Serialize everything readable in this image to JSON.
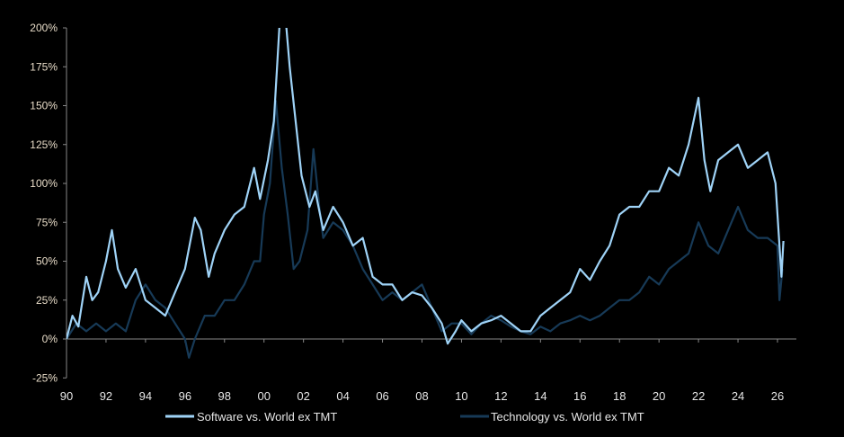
{
  "chart_data": {
    "type": "line",
    "title": "",
    "xlabel": "",
    "ylabel": "",
    "xlim": [
      1990,
      2026.8
    ],
    "ylim": [
      -25,
      200
    ],
    "y_ticks": [
      -25,
      0,
      25,
      50,
      75,
      100,
      125,
      150,
      175,
      200
    ],
    "y_tick_labels": [
      "-25%",
      "0%",
      "25%",
      "50%",
      "75%",
      "100%",
      "125%",
      "150%",
      "175%",
      "200%"
    ],
    "x_ticks": [
      1990,
      1992,
      1994,
      1996,
      1998,
      2000,
      2002,
      2004,
      2006,
      2008,
      2010,
      2012,
      2014,
      2016,
      2018,
      2020,
      2022,
      2024,
      2026
    ],
    "x_tick_labels": [
      "90",
      "92",
      "94",
      "96",
      "98",
      "00",
      "02",
      "04",
      "06",
      "08",
      "10",
      "12",
      "14",
      "16",
      "18",
      "20",
      "22",
      "24",
      "26"
    ],
    "grid": false,
    "legend_position": "bottom",
    "series": [
      {
        "name": "Software vs. World ex TMT",
        "color": "#9fd3f7",
        "x": [
          1990,
          1990.3,
          1990.6,
          1991,
          1991.3,
          1991.6,
          1992,
          1992.3,
          1992.6,
          1993,
          1993.5,
          1994,
          1994.5,
          1995,
          1995.5,
          1996,
          1996.5,
          1996.8,
          1997.2,
          1997.5,
          1998,
          1998.5,
          1999,
          1999.5,
          1999.8,
          2000.2,
          2000.5,
          2000.8,
          2001.1,
          2001.3,
          2001.6,
          2001.9,
          2002.3,
          2002.6,
          2003,
          2003.5,
          2004,
          2004.5,
          2005,
          2005.5,
          2006,
          2006.5,
          2007,
          2007.5,
          2008,
          2008.5,
          2009,
          2009.3,
          2009.7,
          2010,
          2010.5,
          2011,
          2011.5,
          2012,
          2012.5,
          2013,
          2013.5,
          2014,
          2014.5,
          2015,
          2015.5,
          2016,
          2016.5,
          2017,
          2017.5,
          2018,
          2018.5,
          2019,
          2019.5,
          2020,
          2020.5,
          2021,
          2021.5,
          2022,
          2022.3,
          2022.6,
          2023,
          2023.5,
          2024,
          2024.5,
          2025,
          2025.5,
          2025.9,
          2026.1,
          2026.2,
          2026.3
        ],
        "values": [
          0,
          15,
          8,
          40,
          25,
          30,
          50,
          70,
          45,
          33,
          45,
          25,
          20,
          15,
          30,
          45,
          78,
          70,
          40,
          55,
          70,
          80,
          85,
          110,
          90,
          115,
          140,
          205,
          205,
          175,
          140,
          105,
          85,
          95,
          70,
          85,
          75,
          60,
          65,
          40,
          35,
          35,
          25,
          30,
          28,
          20,
          10,
          -3,
          5,
          12,
          5,
          10,
          12,
          15,
          10,
          5,
          5,
          15,
          20,
          25,
          30,
          45,
          38,
          50,
          60,
          80,
          85,
          85,
          95,
          95,
          110,
          105,
          125,
          155,
          115,
          95,
          115,
          120,
          125,
          110,
          115,
          120,
          100,
          60,
          40,
          63
        ]
      },
      {
        "name": "Technology vs. World ex TMT",
        "color": "#173a57",
        "x": [
          1990,
          1990.5,
          1991,
          1991.5,
          1992,
          1992.5,
          1993,
          1993.5,
          1994,
          1994.5,
          1995,
          1995.5,
          1996,
          1996.2,
          1996.5,
          1997,
          1997.5,
          1998,
          1998.5,
          1999,
          1999.5,
          1999.8,
          2000,
          2000.3,
          2000.6,
          2000.9,
          2001.2,
          2001.5,
          2001.8,
          2002.2,
          2002.5,
          2002.8,
          2003,
          2003.5,
          2004,
          2004.5,
          2005,
          2005.5,
          2006,
          2006.5,
          2007,
          2007.5,
          2008,
          2008.5,
          2009,
          2009.5,
          2010,
          2010.5,
          2011,
          2011.5,
          2012,
          2012.5,
          2013,
          2013.5,
          2014,
          2014.5,
          2015,
          2015.5,
          2016,
          2016.5,
          2017,
          2017.5,
          2018,
          2018.5,
          2019,
          2019.5,
          2020,
          2020.5,
          2021,
          2021.5,
          2022,
          2022.5,
          2023,
          2023.5,
          2024,
          2024.5,
          2025,
          2025.5,
          2026,
          2026.1,
          2026.25
        ],
        "values": [
          0,
          10,
          5,
          10,
          5,
          10,
          5,
          25,
          35,
          25,
          20,
          10,
          0,
          -12,
          0,
          15,
          15,
          25,
          25,
          35,
          50,
          50,
          80,
          100,
          153,
          110,
          80,
          45,
          50,
          70,
          122,
          85,
          65,
          75,
          70,
          60,
          45,
          35,
          25,
          30,
          25,
          30,
          35,
          20,
          5,
          10,
          10,
          3,
          10,
          15,
          12,
          8,
          5,
          3,
          8,
          5,
          10,
          12,
          15,
          12,
          15,
          20,
          25,
          25,
          30,
          40,
          35,
          45,
          50,
          55,
          75,
          60,
          55,
          70,
          85,
          70,
          65,
          65,
          60,
          25,
          45
        ]
      }
    ]
  }
}
